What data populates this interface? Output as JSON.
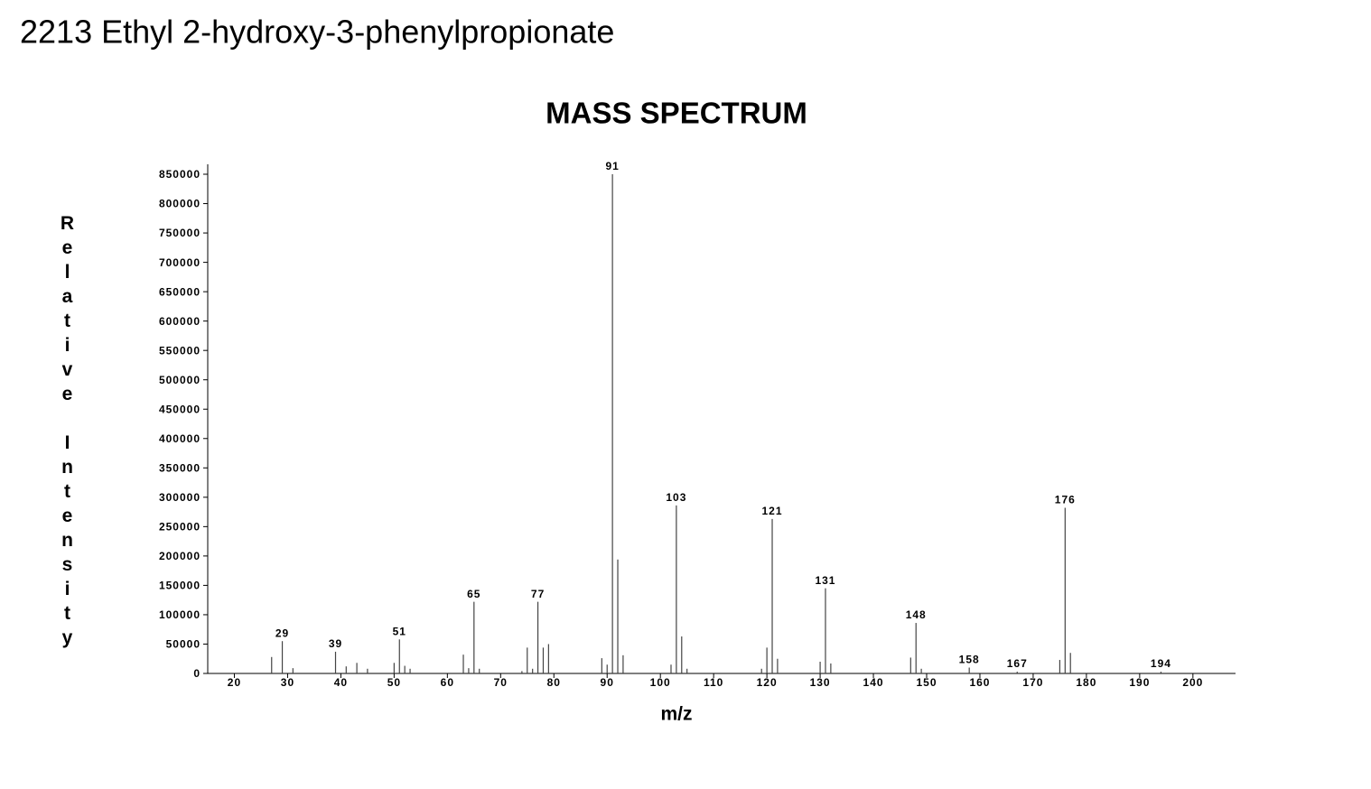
{
  "page_title": "2213  Ethyl 2-hydroxy-3-phenylpropionate",
  "chart_data": {
    "type": "bar",
    "title": "MASS SPECTRUM",
    "xlabel": "m/z",
    "ylabel": "Relative Intensity",
    "x": [
      27,
      29,
      31,
      39,
      41,
      43,
      45,
      50,
      51,
      52,
      53,
      63,
      64,
      65,
      66,
      74,
      75,
      76,
      77,
      78,
      79,
      89,
      90,
      91,
      92,
      93,
      102,
      103,
      104,
      105,
      119,
      120,
      121,
      122,
      130,
      131,
      132,
      147,
      148,
      149,
      158,
      167,
      175,
      176,
      177,
      194
    ],
    "values": [
      28000,
      55000,
      9000,
      37000,
      12000,
      18000,
      8000,
      18000,
      58000,
      13000,
      8000,
      32000,
      9000,
      122000,
      8000,
      4000,
      44000,
      8000,
      122000,
      44000,
      50000,
      26000,
      15000,
      850000,
      194000,
      31000,
      15000,
      286000,
      63000,
      8000,
      8000,
      44000,
      263000,
      25000,
      20000,
      145000,
      17000,
      27000,
      86000,
      8000,
      10000,
      3000,
      23000,
      282000,
      35000,
      3000
    ],
    "annotations": [
      29,
      39,
      51,
      65,
      77,
      91,
      103,
      121,
      131,
      148,
      158,
      167,
      176,
      194
    ],
    "color": "#444444",
    "xlim": [
      15,
      208
    ],
    "xticks": [
      20,
      30,
      40,
      50,
      60,
      70,
      80,
      90,
      100,
      110,
      120,
      130,
      140,
      150,
      160,
      170,
      180,
      190,
      200
    ],
    "ylim": [
      0,
      870000
    ],
    "yticks": [
      0,
      50000,
      100000,
      150000,
      200000,
      250000,
      300000,
      350000,
      400000,
      450000,
      500000,
      550000,
      600000,
      650000,
      700000,
      750000,
      800000,
      850000
    ]
  }
}
